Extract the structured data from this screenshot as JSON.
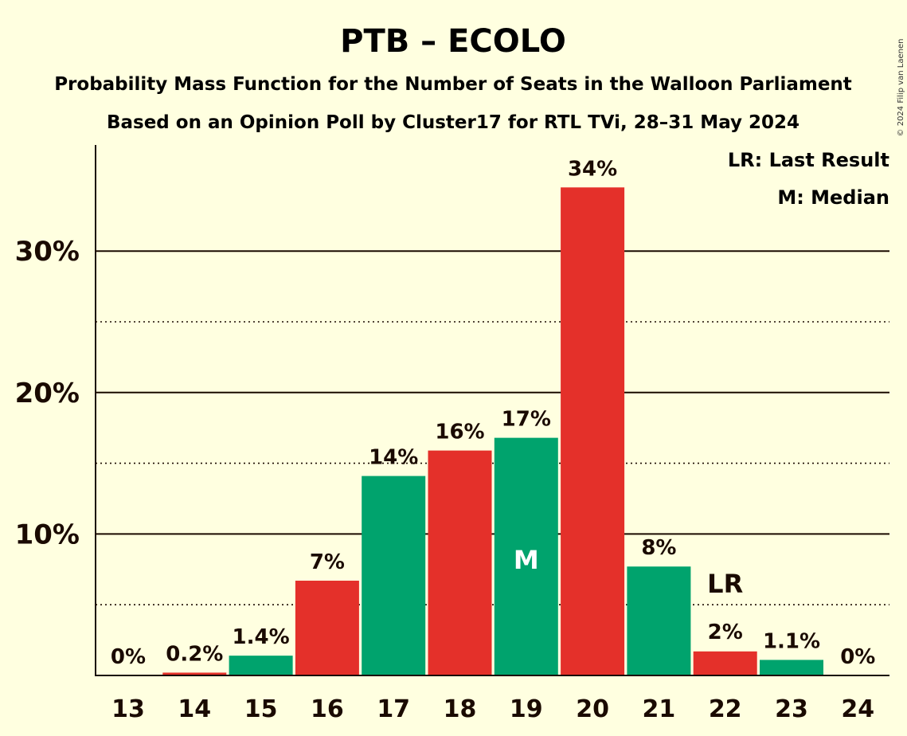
{
  "chart_data": {
    "type": "bar",
    "title": "PTB – ECOLO",
    "subtitle": "Probability Mass Function for the Number of Seats in the Walloon Parliament",
    "subtitle2": "Based on an Opinion Poll by Cluster17 for RTL TVi, 28–31 May 2024",
    "copyright": "© 2024 Filip van Laenen",
    "legend": [
      "LR: Last Result",
      "M: Median"
    ],
    "legend_placement": "top-right",
    "ylim": [
      0,
      37.5
    ],
    "yticks": [
      10,
      20,
      30
    ],
    "ytick_labels": [
      "10%",
      "20%",
      "30%"
    ],
    "minor_gridlines": [
      5,
      15,
      25
    ],
    "categories": [
      "13",
      "14",
      "15",
      "16",
      "17",
      "18",
      "19",
      "20",
      "21",
      "22",
      "23",
      "24"
    ],
    "values": [
      0,
      0.2,
      1.4,
      6.7,
      14.1,
      15.9,
      16.8,
      34.5,
      7.7,
      1.7,
      1.1,
      0
    ],
    "labels": [
      "0%",
      "0.2%",
      "1.4%",
      "7%",
      "14%",
      "16%",
      "17%",
      "34%",
      "8%",
      "2%",
      "1.1%",
      "0%"
    ],
    "bar_colors": [
      "#e4302a",
      "#e4302a",
      "#00a36d",
      "#e4302a",
      "#00a36d",
      "#e4302a",
      "#00a36d",
      "#e4302a",
      "#00a36d",
      "#e4302a",
      "#00a36d",
      "#e4302a"
    ],
    "median_category": "19",
    "median_marker": "M",
    "last_result_category": "22",
    "last_result_marker": "LR"
  }
}
